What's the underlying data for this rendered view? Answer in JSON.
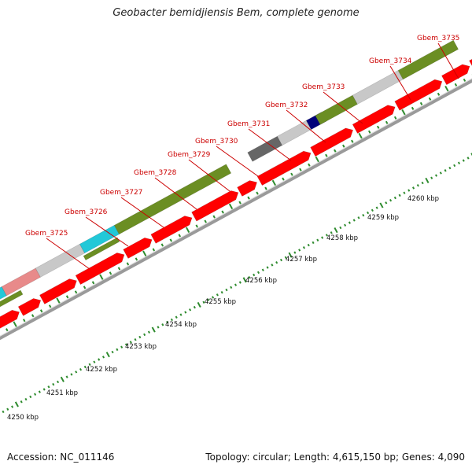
{
  "title": "Geobacter bemidjiensis Bem, complete genome",
  "footer": {
    "accession": "Accession: NC_011146",
    "summary": "Topology: circular; Length: 4,615,150 bp; Genes: 4,090"
  },
  "colors": {
    "cds": "#ff0000",
    "gene_label": "#cc0000",
    "tick": "#2e8b2e",
    "backbone": "#9a9a9a",
    "olive": "#6b8e23",
    "light_grey": "#c8c8c8",
    "cyan": "#22c8d8",
    "pink": "#e88a8a",
    "dark_grey": "#666666",
    "navy": "#00007a"
  },
  "scale": {
    "labels": [
      "4250 kbp",
      "4251 kbp",
      "4252 kbp",
      "4253 kbp",
      "4254 kbp",
      "4255 kbp",
      "4256 kbp",
      "4257 kbp",
      "4258 kbp",
      "4259 kbp",
      "4260 kbp"
    ]
  },
  "genes": [
    {
      "label": "Gbem_3725"
    },
    {
      "label": "Gbem_3726"
    },
    {
      "label": "Gbem_3727"
    },
    {
      "label": "Gbem_3728"
    },
    {
      "label": "Gbem_3729"
    },
    {
      "label": "Gbem_3730"
    },
    {
      "label": "Gbem_3731"
    },
    {
      "label": "Gbem_3732"
    },
    {
      "label": "Gbem_3733"
    },
    {
      "label": "Gbem_3734"
    },
    {
      "label": "Gbem_3735"
    }
  ],
  "feature_ring": [
    {
      "color": "cyan"
    },
    {
      "color": "pink"
    },
    {
      "color": "light_grey"
    },
    {
      "color": "cyan"
    },
    {
      "color": "olive"
    },
    {
      "color": "dark_grey"
    },
    {
      "color": "light_grey"
    },
    {
      "color": "navy"
    },
    {
      "color": "olive"
    },
    {
      "color": "light_grey"
    },
    {
      "color": "olive"
    }
  ],
  "strand_ring": [
    {
      "color": "olive"
    },
    {
      "color": "olive"
    }
  ]
}
